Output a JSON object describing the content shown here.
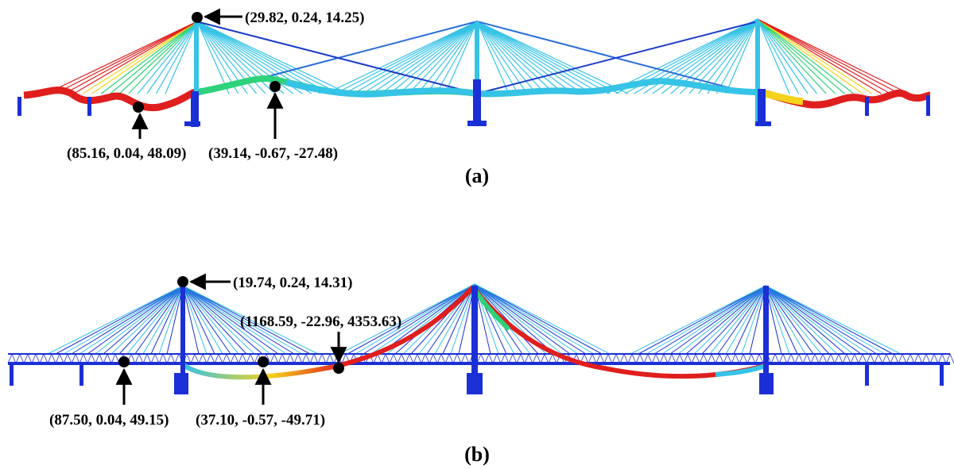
{
  "panels": [
    {
      "caption": "(a)",
      "annotations": [
        {
          "id": "tower-top",
          "label": "(29.82, 0.24, 14.25)"
        },
        {
          "id": "side-span",
          "label": "(85.16, 0.04, 48.09)"
        },
        {
          "id": "main-span",
          "label": "(39.14, -0.67, -27.48)"
        }
      ]
    },
    {
      "caption": "(b)",
      "annotations": [
        {
          "id": "tower-top",
          "label": "(19.74, 0.24, 14.31)"
        },
        {
          "id": "cable-point",
          "label": "(1168.59, -22.96, 4353.63)"
        },
        {
          "id": "side-span",
          "label": "(87.50, 0.04, 49.15)"
        },
        {
          "id": "main-span",
          "label": "(37.10, -0.57, -49.71)"
        }
      ]
    }
  ],
  "colors": {
    "structure": "#1a2fd6",
    "cable_light": "#35c3e6",
    "hot": "#e01e1e",
    "warm": "#f5d21b",
    "mid": "#2ed27a",
    "marker": "#000000"
  }
}
